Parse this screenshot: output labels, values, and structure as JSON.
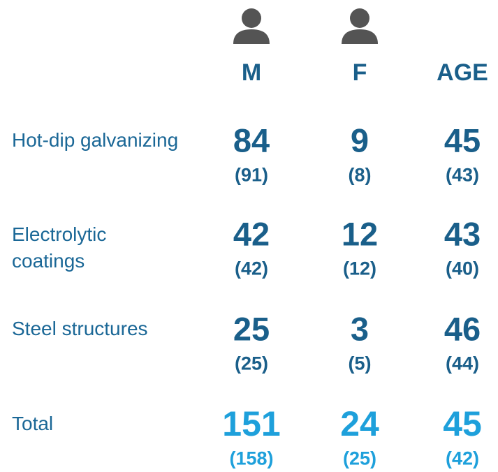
{
  "table": {
    "columns": [
      "M",
      "F",
      "AGE"
    ],
    "icon_columns": [
      0,
      1
    ],
    "rows": [
      {
        "label": [
          "Hot-dip galvanizing"
        ],
        "values": [
          84,
          9,
          45
        ],
        "previous": [
          "(91)",
          "(8)",
          "(43)"
        ]
      },
      {
        "label": [
          "Electrolytic",
          "coatings"
        ],
        "values": [
          42,
          12,
          43
        ],
        "previous": [
          "(42)",
          "(12)",
          "(40)"
        ]
      },
      {
        "label": [
          "Steel structures"
        ],
        "values": [
          25,
          3,
          46
        ],
        "previous": [
          "(25)",
          "(5)",
          "(44)"
        ]
      },
      {
        "label": [
          "Total"
        ],
        "values": [
          151,
          24,
          45
        ],
        "previous": [
          "(158)",
          "(25)",
          "(42)"
        ],
        "total": true
      }
    ]
  }
}
